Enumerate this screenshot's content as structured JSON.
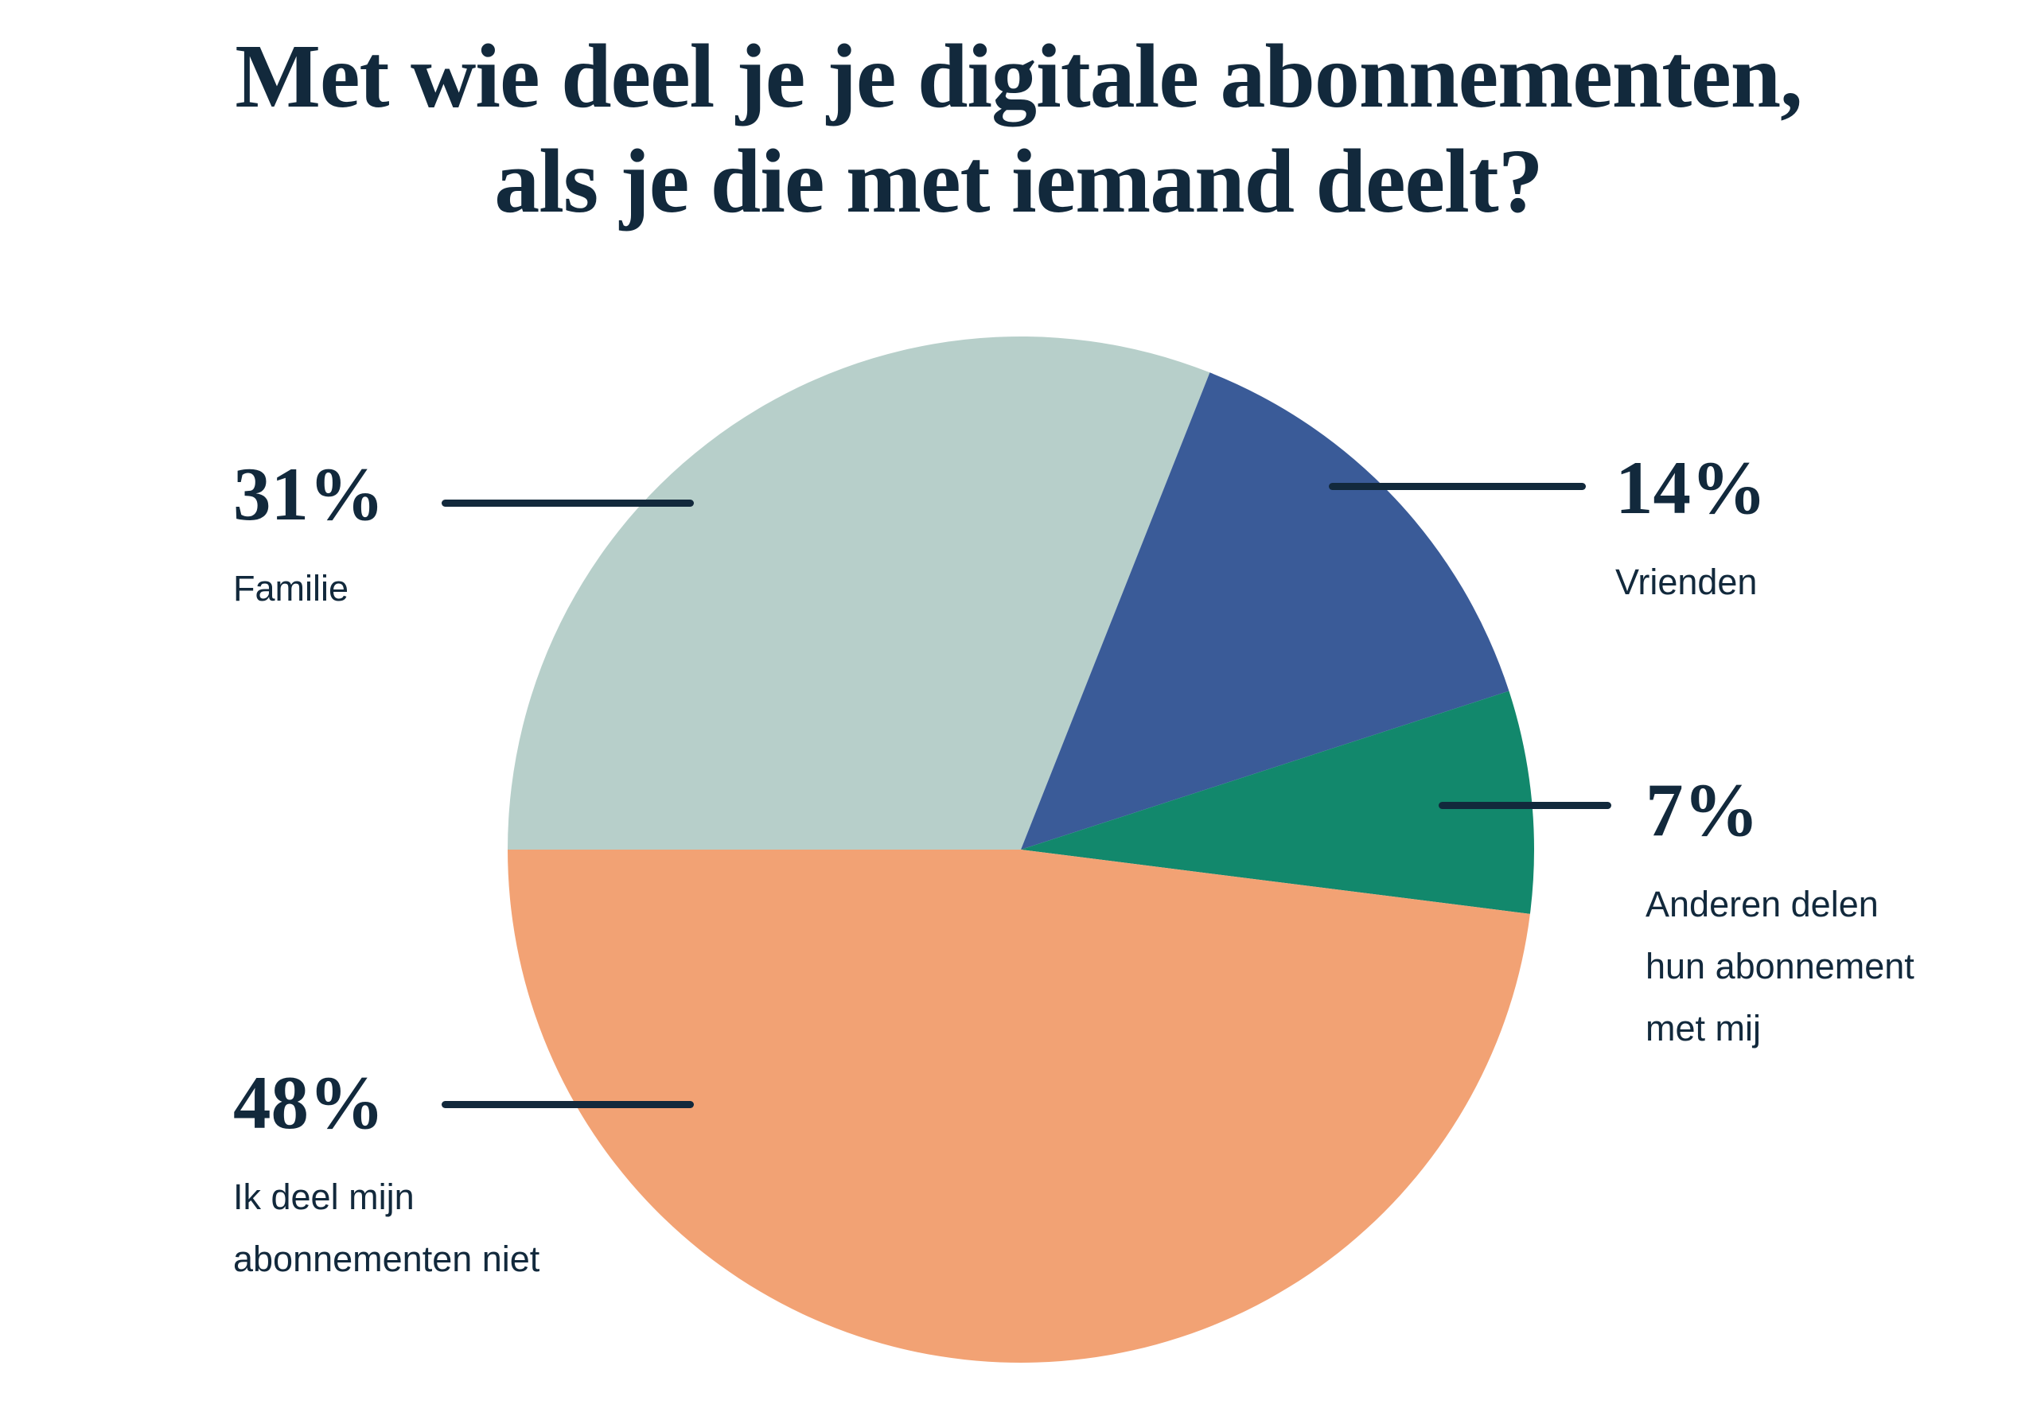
{
  "title": {
    "line1": "Met wie deel je je digitale abonnementen,",
    "line2": "als je die met iemand deelt?"
  },
  "colors": {
    "background": "#ffffff",
    "text_navy": "#12293c",
    "leader_line": "#12293c",
    "slice_familie": "#b7cfca",
    "slice_vrienden": "#3a5b98",
    "slice_anderen": "#12886c",
    "slice_niet_delen": "#f2a274"
  },
  "chart_data": {
    "type": "pie",
    "title": "Met wie deel je je digitale abonnementen, als je die met iemand deelt?",
    "unit": "%",
    "start_angle_deg": -90,
    "direction": "clockwise",
    "legend_position": "outside-callouts",
    "slices": [
      {
        "label": "Familie",
        "value": 31,
        "color": "#b7cfca"
      },
      {
        "label": "Vrienden",
        "value": 14,
        "color": "#3a5b98"
      },
      {
        "label": "Anderen delen hun abonnement met mij",
        "value": 7,
        "color": "#12886c"
      },
      {
        "label": "Ik deel mijn abonnementen niet",
        "value": 48,
        "color": "#f2a274"
      }
    ]
  },
  "callouts": {
    "familie": {
      "percent": "31%",
      "label": "Familie"
    },
    "vrienden": {
      "percent": "14%",
      "label": "Vrienden"
    },
    "anderen": {
      "percent": "7%",
      "lines": [
        "Anderen delen",
        "hun abonnement",
        "met mij"
      ]
    },
    "niet": {
      "percent": "48%",
      "lines": [
        "Ik deel mijn",
        "abonnementen niet"
      ]
    }
  }
}
